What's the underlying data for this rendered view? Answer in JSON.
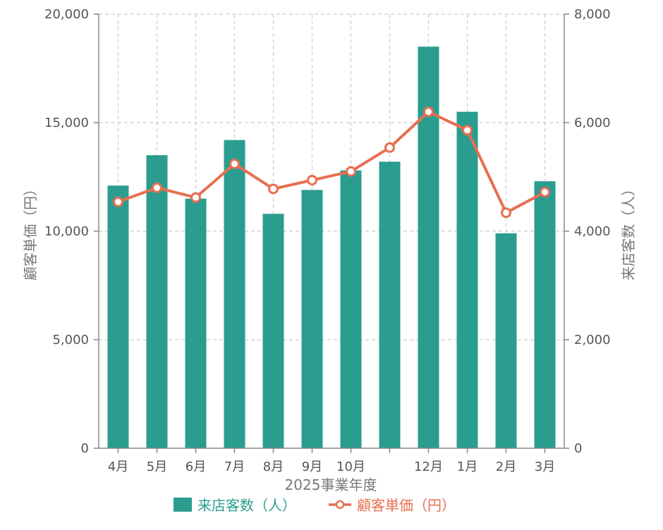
{
  "chart_data": {
    "type": "bar",
    "categories": [
      "4月",
      "5月",
      "6月",
      "7月",
      "8月",
      "9月",
      "10月",
      "",
      "12月",
      "1月",
      "2月",
      "3月"
    ],
    "xlabel": "2025事業年度",
    "ylabel_left": "顧客単価（円）",
    "ylabel_right": "来店客数（人）",
    "left_axis": {
      "min": 0,
      "max": 20000,
      "ticks": [
        0,
        5000,
        10000,
        15000,
        20000
      ],
      "tick_labels": [
        "0",
        "5,000",
        "10,000",
        "15,000",
        "20,000"
      ]
    },
    "right_axis": {
      "min": 0,
      "max": 8000,
      "ticks": [
        0,
        2000,
        4000,
        6000,
        8000
      ],
      "tick_labels": [
        "0",
        "2,000",
        "4,000",
        "6,000",
        "8,000"
      ]
    },
    "grid": true,
    "legend_position": "bottom",
    "series": [
      {
        "name": "来店客数（人）",
        "type": "bar",
        "axis": "right",
        "color": "#2a9d8f",
        "values": [
          4840,
          5400,
          4600,
          5680,
          4320,
          4760,
          5120,
          5280,
          7400,
          6200,
          3960,
          4920
        ]
      },
      {
        "name": "顧客単価（円）",
        "type": "line",
        "axis": "left",
        "color": "#e76f51",
        "values": [
          11350,
          12000,
          11550,
          13100,
          11950,
          12350,
          12750,
          13850,
          15500,
          14650,
          10850,
          11800
        ]
      }
    ]
  }
}
